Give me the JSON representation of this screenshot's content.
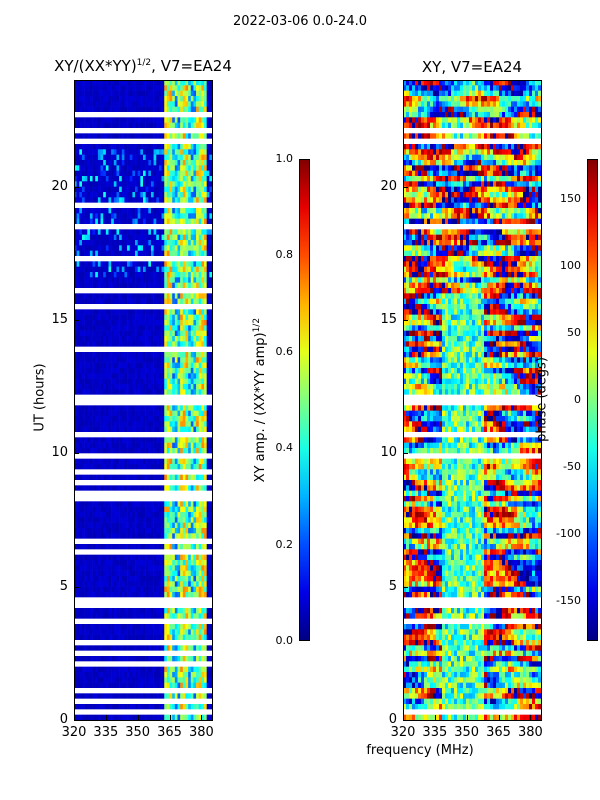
{
  "suptitle": "2022-03-06 0.0-24.0",
  "chart_data": [
    {
      "type": "heatmap",
      "title": "XY/(XX*YY)^1/2, V7=EA24",
      "title_main": "XY/(XX*YY)",
      "title_exp": "1/2",
      "title_rest": ", V7=EA24",
      "xlabel": "",
      "ylabel": "UT (hours)",
      "xlim": [
        320,
        385
      ],
      "ylim": [
        0,
        24
      ],
      "xticks": [
        320,
        335,
        350,
        365,
        380
      ],
      "yticks": [
        0,
        5,
        10,
        15,
        20
      ],
      "colorbar": {
        "label": "XY amp. / (XX*YY amp)^1/2",
        "label_main": "XY amp. / (XX*YY amp)",
        "label_exp": "1/2",
        "range": [
          0.0,
          1.0
        ],
        "ticks": [
          "0.0",
          "0.2",
          "0.4",
          "0.6",
          "0.8",
          "1.0"
        ],
        "tick_values": [
          0.0,
          0.2,
          0.4,
          0.6,
          0.8,
          1.0
        ]
      },
      "colormap": "jet",
      "background_value": 0.05,
      "bright_band_mhz": [
        362,
        382
      ],
      "bright_band_value_range": [
        0.35,
        0.75
      ],
      "blank_rows_hours": [
        0.0,
        0.35,
        0.7,
        1.1,
        1.6,
        2.1,
        2.55,
        2.9,
        3.6,
        3.75,
        4.3,
        4.55,
        5.2,
        5.8,
        6.3,
        6.7,
        7.0,
        7.6,
        8.0,
        8.3,
        8.55,
        8.9,
        9.3,
        9.9,
        10.4,
        10.65,
        11.2,
        11.9,
        12.1,
        12.6,
        13.2,
        13.9,
        14.4,
        15.0,
        15.2,
        15.5,
        16.1,
        16.4,
        17.3,
        18.5,
        19.3,
        20.0,
        21.7,
        22.1,
        22.7,
        23.0,
        23.2
      ]
    },
    {
      "type": "heatmap",
      "title": "XY, V7=EA24",
      "xlabel": "frequency (MHz)",
      "ylabel": "",
      "xlim": [
        320,
        385
      ],
      "ylim": [
        0,
        24
      ],
      "xticks": [
        320,
        335,
        350,
        365,
        380
      ],
      "yticks": [
        0,
        5,
        10,
        15,
        20
      ],
      "colorbar": {
        "label": "phase (degs)",
        "range": [
          -180,
          180
        ],
        "ticks": [
          "-150",
          "-100",
          "-50",
          "0",
          "50",
          "100",
          "150"
        ],
        "tick_values": [
          -150,
          -100,
          -50,
          0,
          50,
          100,
          150
        ]
      },
      "colormap": "jet",
      "blank_rows_hours": [
        0.3,
        1.2,
        2.6,
        3.6,
        3.75,
        4.3,
        4.55,
        5.8,
        7.0,
        8.6,
        9.9,
        10.4,
        10.65,
        11.9,
        12.1,
        13.2,
        15.0,
        15.2,
        16.4,
        18.5,
        20.0,
        21.7,
        22.1,
        23.0,
        23.2
      ]
    }
  ]
}
